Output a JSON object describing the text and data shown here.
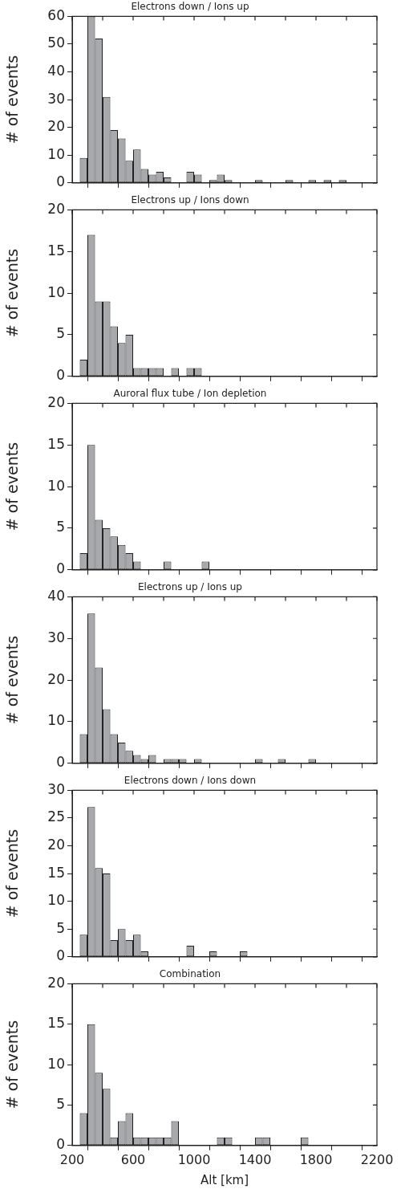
{
  "chart_data": [
    {
      "type": "histogram",
      "title": "Electrons down / Ions up",
      "ylabel": "# of events",
      "color": "#a7a9ac",
      "bins": [
        250,
        300,
        350,
        400,
        450,
        500,
        550,
        600,
        650,
        700,
        750,
        800,
        850,
        900,
        950,
        1000,
        1050,
        1100,
        1150,
        1200,
        1250,
        1300,
        1350,
        1400,
        1450,
        1500,
        1550,
        1600,
        1650,
        1700,
        1750,
        1800,
        1850,
        1900,
        1950,
        2000
      ],
      "values": [
        9,
        60,
        52,
        31,
        19,
        16,
        8,
        12,
        5,
        3,
        4,
        2,
        0,
        0,
        4,
        3,
        0,
        1,
        3,
        1,
        0,
        0,
        0,
        1,
        0,
        0,
        0,
        1,
        0,
        0,
        1,
        0,
        1,
        0,
        1
      ],
      "xlim": [
        200,
        2200
      ],
      "xticks": [
        200,
        {
          "value": 400,
          "label": null
        },
        600,
        {
          "value": 800,
          "label": null
        },
        1000,
        {
          "value": 1200,
          "label": null
        },
        1400,
        {
          "value": 1600,
          "label": null
        },
        1800,
        {
          "value": 2000,
          "label": null
        },
        2200
      ],
      "ylim": [
        0,
        60
      ],
      "yticks": [
        0,
        10,
        20,
        30,
        40,
        50,
        60
      ],
      "tick_labels": "y",
      "grid": false,
      "legend": false
    },
    {
      "type": "histogram",
      "title": "Electrons up / Ions down",
      "ylabel": "# of events",
      "color": "#a7a9ac",
      "bins": [
        250,
        300,
        350,
        400,
        450,
        500,
        550,
        600,
        650,
        700,
        750,
        800,
        850,
        900,
        950,
        1000,
        1050,
        1100,
        1150,
        1200,
        1250,
        1300,
        1350,
        1400,
        1450,
        1500,
        1550,
        1600,
        1650,
        1700,
        1750,
        1800,
        1850,
        1900,
        1950,
        2000
      ],
      "values": [
        2,
        17,
        9,
        9,
        6,
        4,
        5,
        1,
        1,
        1,
        1,
        0,
        1,
        0,
        1,
        1,
        0,
        0,
        0,
        0,
        0,
        0,
        0,
        0,
        0,
        0,
        0,
        0,
        0,
        0,
        0,
        0,
        0,
        0,
        0
      ],
      "xlim": [
        200,
        2200
      ],
      "xticks": [
        200,
        {
          "value": 400,
          "label": null
        },
        600,
        {
          "value": 800,
          "label": null
        },
        1000,
        {
          "value": 1200,
          "label": null
        },
        1400,
        {
          "value": 1600,
          "label": null
        },
        1800,
        {
          "value": 2000,
          "label": null
        },
        2200
      ],
      "ylim": [
        0,
        20
      ],
      "yticks": [
        0,
        5,
        10,
        15,
        20
      ],
      "tick_labels": "y",
      "grid": false,
      "legend": false
    },
    {
      "type": "histogram",
      "title": "Auroral flux tube / Ion depletion",
      "ylabel": "# of events",
      "color": "#a7a9ac",
      "bins": [
        250,
        300,
        350,
        400,
        450,
        500,
        550,
        600,
        650,
        700,
        750,
        800,
        850,
        900,
        950,
        1000,
        1050,
        1100,
        1150,
        1200,
        1250,
        1300,
        1350,
        1400,
        1450,
        1500,
        1550,
        1600,
        1650,
        1700,
        1750,
        1800,
        1850,
        1900,
        1950,
        2000
      ],
      "values": [
        2,
        15,
        6,
        5,
        4,
        3,
        2,
        1,
        0,
        0,
        0,
        1,
        0,
        0,
        0,
        0,
        1,
        0,
        0,
        0,
        0,
        0,
        0,
        0,
        0,
        0,
        0,
        0,
        0,
        0,
        0,
        0,
        0,
        0,
        0
      ],
      "xlim": [
        200,
        2200
      ],
      "xticks": [
        200,
        {
          "value": 400,
          "label": null
        },
        600,
        {
          "value": 800,
          "label": null
        },
        1000,
        {
          "value": 1200,
          "label": null
        },
        1400,
        {
          "value": 1600,
          "label": null
        },
        1800,
        {
          "value": 2000,
          "label": null
        },
        2200
      ],
      "ylim": [
        0,
        20
      ],
      "yticks": [
        0,
        5,
        10,
        15,
        20
      ],
      "tick_labels": "y",
      "grid": false,
      "legend": false
    },
    {
      "type": "histogram",
      "title": "Electrons up / Ions up",
      "ylabel": "# of events",
      "color": "#a7a9ac",
      "bins": [
        250,
        300,
        350,
        400,
        450,
        500,
        550,
        600,
        650,
        700,
        750,
        800,
        850,
        900,
        950,
        1000,
        1050,
        1100,
        1150,
        1200,
        1250,
        1300,
        1350,
        1400,
        1450,
        1500,
        1550,
        1600,
        1650,
        1700,
        1750,
        1800,
        1850,
        1900,
        1950,
        2000
      ],
      "values": [
        7,
        36,
        23,
        13,
        7,
        5,
        3,
        2,
        1,
        2,
        0,
        1,
        1,
        1,
        0,
        1,
        0,
        0,
        0,
        0,
        0,
        0,
        0,
        1,
        0,
        0,
        1,
        0,
        0,
        0,
        1,
        0,
        0,
        0,
        0
      ],
      "xlim": [
        200,
        2200
      ],
      "xticks": [
        200,
        {
          "value": 400,
          "label": null
        },
        600,
        {
          "value": 800,
          "label": null
        },
        1000,
        {
          "value": 1200,
          "label": null
        },
        1400,
        {
          "value": 1600,
          "label": null
        },
        1800,
        {
          "value": 2000,
          "label": null
        },
        2200
      ],
      "ylim": [
        0,
        40
      ],
      "yticks": [
        0,
        10,
        20,
        30,
        40
      ],
      "tick_labels": "y",
      "grid": false,
      "legend": false
    },
    {
      "type": "histogram",
      "title": "Electrons down / Ions down",
      "ylabel": "# of events",
      "color": "#a7a9ac",
      "bins": [
        250,
        300,
        350,
        400,
        450,
        500,
        550,
        600,
        650,
        700,
        750,
        800,
        850,
        900,
        950,
        1000,
        1050,
        1100,
        1150,
        1200,
        1250,
        1300,
        1350,
        1400,
        1450,
        1500,
        1550,
        1600,
        1650,
        1700,
        1750,
        1800,
        1850,
        1900,
        1950,
        2000
      ],
      "values": [
        4,
        27,
        16,
        15,
        3,
        5,
        3,
        4,
        1,
        0,
        0,
        0,
        0,
        0,
        2,
        0,
        0,
        1,
        0,
        0,
        0,
        1,
        0,
        0,
        0,
        0,
        0,
        0,
        0,
        0,
        0,
        0,
        0,
        0,
        0
      ],
      "xlim": [
        200,
        2200
      ],
      "xticks": [
        200,
        {
          "value": 400,
          "label": null
        },
        600,
        {
          "value": 800,
          "label": null
        },
        1000,
        {
          "value": 1200,
          "label": null
        },
        1400,
        {
          "value": 1600,
          "label": null
        },
        1800,
        {
          "value": 2000,
          "label": null
        },
        2200
      ],
      "ylim": [
        0,
        30
      ],
      "yticks": [
        0,
        5,
        10,
        15,
        20,
        25,
        30
      ],
      "tick_labels": "y",
      "grid": false,
      "legend": false
    },
    {
      "type": "histogram",
      "title": "Combination",
      "xlabel": "Alt [km]",
      "ylabel": "# of events",
      "color": "#a7a9ac",
      "bins": [
        250,
        300,
        350,
        400,
        450,
        500,
        550,
        600,
        650,
        700,
        750,
        800,
        850,
        900,
        950,
        1000,
        1050,
        1100,
        1150,
        1200,
        1250,
        1300,
        1350,
        1400,
        1450,
        1500,
        1550,
        1600,
        1650,
        1700,
        1750,
        1800,
        1850,
        1900,
        1950,
        2000
      ],
      "values": [
        4,
        15,
        9,
        7,
        1,
        3,
        4,
        1,
        1,
        1,
        1,
        1,
        3,
        0,
        0,
        0,
        0,
        0,
        1,
        1,
        0,
        0,
        0,
        1,
        1,
        0,
        0,
        0,
        0,
        1,
        0,
        0,
        0,
        0,
        0
      ],
      "xlim": [
        200,
        2200
      ],
      "xticks": [
        200,
        {
          "value": 400,
          "label": null
        },
        600,
        {
          "value": 800,
          "label": null
        },
        1000,
        {
          "value": 1200,
          "label": null
        },
        1400,
        {
          "value": 1600,
          "label": null
        },
        1800,
        {
          "value": 2000,
          "label": null
        },
        2200
      ],
      "ylim": [
        0,
        20
      ],
      "yticks": [
        0,
        5,
        10,
        15,
        20
      ],
      "grid": false,
      "legend": false
    }
  ]
}
